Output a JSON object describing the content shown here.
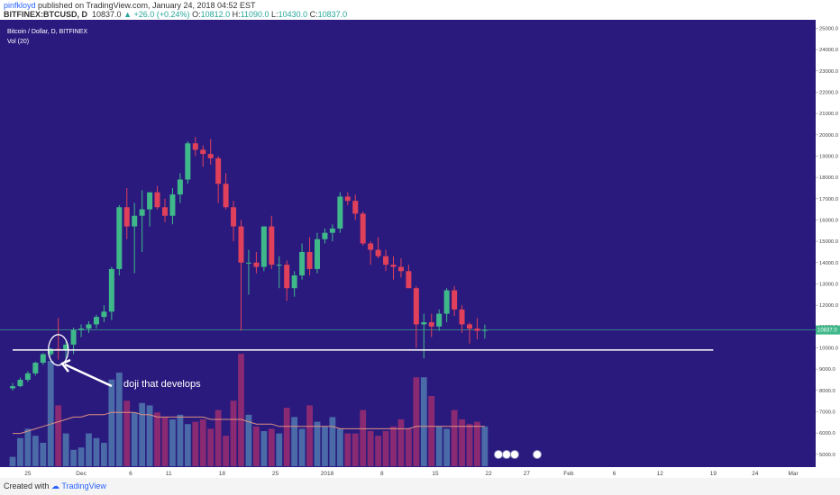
{
  "header": {
    "user": "pinfkloyd",
    "published_text": "published on TradingView.com, January 24, 2018 04:52 EST",
    "symbol": "BITFINEX:BTCUSD, D",
    "last": "10837.0",
    "change": "+26.0 (+0.24%)",
    "o_label": "O:",
    "o_val": "10812.0",
    "h_label": "H:",
    "h_val": "11090.0",
    "l_label": "L:",
    "l_val": "10430.0",
    "c_label": "C:",
    "c_val": "10837.0"
  },
  "legend": {
    "pair": "Bitcoin / Dollar, D, BITFINEX",
    "vol": "Vol (20)"
  },
  "footer": {
    "created": "Created with",
    "brand": "TradingView"
  },
  "colors": {
    "background": "#2a1a7e",
    "up": "#3fb88a",
    "down": "#e0405a",
    "vol_up": "#4a6aa8",
    "vol_down": "#8a2a72",
    "ma_line": "#e09080",
    "price_line": "#3fb88a",
    "axis_bg": "#ffffff"
  },
  "chart_data": {
    "type": "candlestick",
    "y_range": [
      4400,
      25400
    ],
    "y_ticks": [
      "5000.0",
      "6000.0",
      "7000.0",
      "8000.0",
      "9000.0",
      "10000.0",
      "11000.0",
      "12000.0",
      "13000.0",
      "14000.0",
      "15000.0",
      "16000.0",
      "17000.0",
      "18000.0",
      "19000.0",
      "20000.0",
      "21000.0",
      "22000.0",
      "23000.0",
      "24000.0",
      "25000.0"
    ],
    "x_ticks": [
      "25",
      "Dec",
      "6",
      "11",
      "18",
      "25",
      "2018",
      "8",
      "15",
      "22",
      "27",
      "Feb",
      "6",
      "12",
      "19",
      "24",
      "Mar"
    ],
    "current_price_label": "10837.0",
    "support_level": 9900,
    "annotation": "doji that develops",
    "candles": [
      [
        8100,
        8350,
        8000,
        8200
      ],
      [
        8200,
        8600,
        8150,
        8500
      ],
      [
        8500,
        8900,
        8400,
        8800
      ],
      [
        8800,
        9350,
        8700,
        9300
      ],
      [
        9300,
        9750,
        9200,
        9700
      ],
      [
        9700,
        10000,
        9600,
        9950
      ],
      [
        9950,
        11400,
        9450,
        9900
      ],
      [
        9900,
        10300,
        9500,
        10150
      ],
      [
        10150,
        10950,
        9700,
        10850
      ],
      [
        10850,
        11100,
        10500,
        10900
      ],
      [
        10900,
        11250,
        10700,
        11100
      ],
      [
        11100,
        11550,
        10900,
        11450
      ],
      [
        11450,
        12000,
        11200,
        11700
      ],
      [
        11700,
        13800,
        11300,
        13700
      ],
      [
        13700,
        16700,
        13400,
        16600
      ],
      [
        16600,
        17500,
        15100,
        15700
      ],
      [
        15700,
        16800,
        13500,
        16200
      ],
      [
        16200,
        17400,
        14500,
        16500
      ],
      [
        16500,
        17300,
        15700,
        17300
      ],
      [
        17300,
        17600,
        16500,
        16600
      ],
      [
        16600,
        17000,
        15900,
        16200
      ],
      [
        16200,
        17500,
        15800,
        17200
      ],
      [
        17200,
        18200,
        16800,
        17900
      ],
      [
        17900,
        19700,
        17700,
        19600
      ],
      [
        19600,
        19900,
        19000,
        19300
      ],
      [
        19300,
        19500,
        18500,
        19100
      ],
      [
        19100,
        19800,
        18600,
        18900
      ],
      [
        18900,
        19000,
        16800,
        17700
      ],
      [
        17700,
        18200,
        16500,
        16600
      ],
      [
        16600,
        16900,
        15000,
        15700
      ],
      [
        15700,
        16000,
        10800,
        14000
      ],
      [
        14000,
        14600,
        12500,
        14000
      ],
      [
        14000,
        14500,
        13500,
        13800
      ],
      [
        13800,
        15700,
        13600,
        15700
      ],
      [
        15700,
        16200,
        13700,
        13900
      ],
      [
        13900,
        14300,
        12800,
        13900
      ],
      [
        13900,
        14100,
        12200,
        12800
      ],
      [
        12800,
        13600,
        12400,
        13400
      ],
      [
        13400,
        14900,
        13200,
        14500
      ],
      [
        14500,
        15200,
        13400,
        13700
      ],
      [
        13700,
        15400,
        13500,
        15100
      ],
      [
        15100,
        15600,
        14900,
        15400
      ],
      [
        15400,
        15800,
        15000,
        15600
      ],
      [
        15600,
        17300,
        15400,
        17100
      ],
      [
        17100,
        17300,
        16700,
        16900
      ],
      [
        16900,
        17200,
        16000,
        16300
      ],
      [
        16300,
        16400,
        14800,
        14900
      ],
      [
        14900,
        15000,
        13900,
        14600
      ],
      [
        14600,
        15200,
        14200,
        14300
      ],
      [
        14300,
        14600,
        13600,
        13900
      ],
      [
        13900,
        14300,
        13200,
        13800
      ],
      [
        13800,
        14200,
        13300,
        13600
      ],
      [
        13600,
        13900,
        12800,
        12800
      ],
      [
        12800,
        12900,
        10000,
        11100
      ],
      [
        11100,
        11600,
        9500,
        11200
      ],
      [
        11200,
        11600,
        10500,
        11000
      ],
      [
        11000,
        11800,
        10800,
        11600
      ],
      [
        11600,
        12800,
        11200,
        12700
      ],
      [
        12700,
        12900,
        11500,
        11800
      ],
      [
        11800,
        12000,
        10700,
        11100
      ],
      [
        11100,
        11200,
        10200,
        10900
      ],
      [
        10900,
        11400,
        10400,
        10800
      ],
      [
        10812,
        11090,
        10430,
        10837
      ]
    ],
    "volume_heights": [
      4.6,
      5.4,
      5.8,
      5.5,
      5.2,
      8.7,
      6.8,
      5.6,
      4.9,
      5.0,
      5.6,
      5.4,
      5.2,
      7.9,
      8.2,
      7.0,
      6.5,
      6.9,
      6.8,
      6.5,
      6.3,
      6.2,
      6.4,
      6.0,
      6.1,
      6.2,
      5.8,
      6.6,
      5.5,
      7.0,
      9.0,
      6.4,
      5.9,
      5.7,
      5.8,
      5.6,
      6.7,
      6.3,
      5.8,
      6.8,
      6.1,
      5.9,
      6.3,
      5.8,
      5.6,
      5.6,
      6.6,
      5.7,
      5.5,
      5.7,
      5.9,
      6.2,
      5.8,
      8.0,
      8.0,
      7.2,
      5.9,
      5.8,
      6.6,
      6.2,
      6.0,
      6.1,
      5.9
    ],
    "vol_ma": [
      5.6,
      5.6,
      5.7,
      5.8,
      5.9,
      6.0,
      6.1,
      6.2,
      6.3,
      6.3,
      6.4,
      6.4,
      6.4,
      6.5,
      6.5,
      6.5,
      6.5,
      6.4,
      6.4,
      6.3,
      6.3,
      6.3,
      6.3,
      6.3,
      6.3,
      6.3,
      6.2,
      6.2,
      6.2,
      6.2,
      6.2,
      6.1,
      6.0,
      6.0,
      6.0,
      5.9,
      5.9,
      5.9,
      5.9,
      5.9,
      5.9,
      5.9,
      5.9,
      5.8,
      5.8,
      5.8,
      5.8,
      5.8,
      5.8,
      5.8,
      5.8,
      5.8,
      5.8,
      5.9,
      5.9,
      5.9,
      5.9,
      5.9,
      5.9,
      5.9,
      5.9,
      5.9,
      5.9
    ]
  }
}
